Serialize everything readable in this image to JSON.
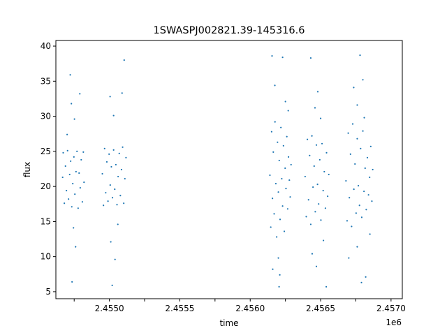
{
  "chart_data": {
    "type": "scatter",
    "title": "1SWASPJ002821.39-145316.6",
    "xlabel": "time",
    "ylabel": "flux",
    "x_offset_label": "1e6",
    "xlim": [
      2454620,
      2457080
    ],
    "ylim": [
      4.0,
      40.8
    ],
    "x_ticks": [
      2454800,
      2455000,
      2455200,
      2455400,
      2455600,
      2455800,
      2456000,
      2456200,
      2456400,
      2456600,
      2456800,
      2457000
    ],
    "x_tick_labels": [
      "",
      "2.4550",
      "",
      "2.4555",
      "",
      "2.4560",
      "",
      "2.4565",
      "",
      "2.4570"
    ],
    "x_tick_values": [
      2454750,
      2455000,
      2455250,
      2455500,
      2455750,
      2456000,
      2456250,
      2456500,
      2456750,
      2457000
    ],
    "y_ticks": [
      5,
      10,
      15,
      20,
      25,
      30,
      35,
      40
    ],
    "y_tick_labels": [
      "5",
      "10",
      "15",
      "20",
      "25",
      "30",
      "35",
      "40"
    ],
    "grid": false,
    "marker_color": "#1f77b4",
    "series": [
      {
        "points": [
          [
            2454668,
            21.3
          ],
          [
            2454672,
            24.8
          ],
          [
            2454680,
            17.6
          ],
          [
            2454688,
            22.9
          ],
          [
            2454695,
            19.4
          ],
          [
            2454703,
            25.1
          ],
          [
            2454710,
            18.2
          ],
          [
            2454718,
            21.7
          ],
          [
            2454725,
            23.6
          ],
          [
            2454733,
            17.1
          ],
          [
            2454740,
            20.4
          ],
          [
            2454748,
            24.2
          ],
          [
            2454755,
            18.9
          ],
          [
            2454763,
            22.1
          ],
          [
            2454770,
            25.0
          ],
          [
            2454778,
            16.9
          ],
          [
            2454785,
            21.9
          ],
          [
            2454793,
            19.8
          ],
          [
            2454800,
            23.8
          ],
          [
            2454808,
            17.8
          ],
          [
            2454815,
            24.9
          ],
          [
            2454820,
            20.6
          ],
          [
            2454700,
            27.4
          ],
          [
            2454722,
            35.9
          ],
          [
            2454730,
            31.8
          ],
          [
            2454745,
            14.1
          ],
          [
            2454760,
            11.4
          ],
          [
            2454735,
            6.4
          ],
          [
            2454752,
            29.6
          ],
          [
            2454790,
            33.2
          ],
          [
            2454950,
            21.8
          ],
          [
            2454958,
            17.3
          ],
          [
            2454966,
            25.4
          ],
          [
            2454974,
            19.1
          ],
          [
            2454982,
            23.5
          ],
          [
            2454990,
            17.9
          ],
          [
            2454998,
            24.6
          ],
          [
            2455006,
            20.2
          ],
          [
            2455014,
            22.8
          ],
          [
            2455022,
            18.4
          ],
          [
            2455030,
            25.2
          ],
          [
            2455038,
            19.6
          ],
          [
            2455046,
            23.1
          ],
          [
            2455054,
            17.4
          ],
          [
            2455062,
            21.4
          ],
          [
            2455070,
            24.7
          ],
          [
            2455078,
            18.7
          ],
          [
            2455086,
            22.4
          ],
          [
            2455094,
            25.6
          ],
          [
            2455102,
            17.6
          ],
          [
            2455110,
            21.1
          ],
          [
            2455118,
            24.1
          ],
          [
            2455005,
            32.8
          ],
          [
            2455030,
            30.1
          ],
          [
            2455010,
            12.1
          ],
          [
            2455040,
            9.6
          ],
          [
            2455090,
            33.3
          ],
          [
            2455105,
            38.0
          ],
          [
            2455020,
            5.9
          ],
          [
            2455060,
            14.6
          ],
          [
            2456140,
            21.6
          ],
          [
            2456146,
            14.2
          ],
          [
            2456152,
            27.8
          ],
          [
            2456158,
            18.3
          ],
          [
            2456164,
            24.9
          ],
          [
            2456170,
            16.1
          ],
          [
            2456176,
            29.2
          ],
          [
            2456182,
            20.4
          ],
          [
            2456188,
            12.8
          ],
          [
            2456194,
            26.3
          ],
          [
            2456200,
            19.2
          ],
          [
            2456206,
            23.7
          ],
          [
            2456212,
            15.3
          ],
          [
            2456218,
            28.4
          ],
          [
            2456224,
            21.1
          ],
          [
            2456230,
            17.2
          ],
          [
            2456236,
            25.8
          ],
          [
            2456242,
            13.6
          ],
          [
            2456248,
            22.6
          ],
          [
            2456254,
            19.7
          ],
          [
            2456260,
            27.1
          ],
          [
            2456266,
            16.8
          ],
          [
            2456272,
            24.2
          ],
          [
            2456278,
            20.9
          ],
          [
            2456284,
            18.5
          ],
          [
            2456290,
            23.1
          ],
          [
            2456155,
            38.6
          ],
          [
            2456175,
            34.4
          ],
          [
            2456200,
            9.8
          ],
          [
            2456205,
            5.7
          ],
          [
            2456210,
            7.4
          ],
          [
            2456230,
            38.4
          ],
          [
            2456250,
            32.1
          ],
          [
            2456160,
            8.2
          ],
          [
            2456270,
            30.8
          ],
          [
            2456390,
            21.4
          ],
          [
            2456398,
            15.7
          ],
          [
            2456406,
            26.7
          ],
          [
            2456414,
            18.1
          ],
          [
            2456422,
            24.4
          ],
          [
            2456430,
            14.6
          ],
          [
            2456438,
            27.2
          ],
          [
            2456446,
            19.9
          ],
          [
            2456454,
            22.9
          ],
          [
            2456462,
            16.4
          ],
          [
            2456470,
            25.9
          ],
          [
            2456478,
            20.3
          ],
          [
            2456486,
            17.5
          ],
          [
            2456494,
            23.8
          ],
          [
            2456502,
            15.2
          ],
          [
            2456510,
            26.1
          ],
          [
            2456518,
            19.4
          ],
          [
            2456526,
            22.1
          ],
          [
            2456534,
            16.9
          ],
          [
            2456542,
            24.8
          ],
          [
            2456550,
            18.6
          ],
          [
            2456558,
            21.7
          ],
          [
            2456430,
            38.3
          ],
          [
            2456460,
            31.2
          ],
          [
            2456480,
            33.5
          ],
          [
            2456440,
            10.4
          ],
          [
            2456470,
            8.6
          ],
          [
            2456540,
            5.7
          ],
          [
            2456520,
            12.3
          ],
          [
            2456500,
            29.7
          ],
          [
            2456680,
            20.8
          ],
          [
            2456688,
            15.1
          ],
          [
            2456696,
            27.6
          ],
          [
            2456704,
            18.4
          ],
          [
            2456712,
            24.6
          ],
          [
            2456720,
            14.3
          ],
          [
            2456728,
            28.9
          ],
          [
            2456736,
            19.6
          ],
          [
            2456744,
            23.2
          ],
          [
            2456752,
            16.2
          ],
          [
            2456760,
            26.8
          ],
          [
            2456768,
            20.1
          ],
          [
            2456776,
            17.3
          ],
          [
            2456784,
            25.4
          ],
          [
            2456792,
            15.6
          ],
          [
            2456800,
            27.9
          ],
          [
            2456808,
            19.3
          ],
          [
            2456816,
            22.6
          ],
          [
            2456824,
            16.7
          ],
          [
            2456832,
            24.1
          ],
          [
            2456840,
            18.8
          ],
          [
            2456848,
            21.3
          ],
          [
            2456856,
            25.7
          ],
          [
            2456864,
            17.9
          ],
          [
            2456870,
            22.4
          ],
          [
            2456735,
            34.1
          ],
          [
            2456780,
            38.7
          ],
          [
            2456800,
            35.2
          ],
          [
            2456760,
            31.6
          ],
          [
            2456810,
            29.8
          ],
          [
            2456700,
            9.8
          ],
          [
            2456790,
            6.3
          ],
          [
            2456820,
            7.1
          ],
          [
            2456760,
            11.4
          ],
          [
            2456850,
            13.2
          ]
        ]
      }
    ]
  }
}
